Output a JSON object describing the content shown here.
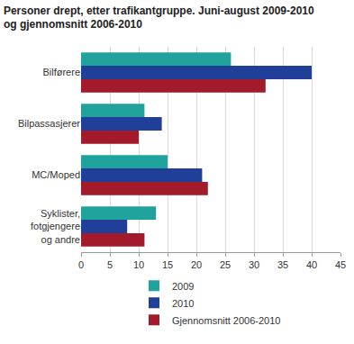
{
  "chart_data": {
    "type": "bar",
    "orientation": "horizontal",
    "title": "Personer drept, etter trafikantgruppe. Juni-august 2009-2010 og gjennomsnitt 2006-2010",
    "categories": [
      "Bilførere",
      "Bilpassasjerer",
      "MC/Moped",
      "Syklister, fotgjengere og andre"
    ],
    "series": [
      {
        "name": "2009",
        "color": "#1fa39c",
        "values": [
          26,
          11,
          15,
          13
        ]
      },
      {
        "name": "2010",
        "color": "#1f3f99",
        "values": [
          40,
          14,
          21,
          8
        ]
      },
      {
        "name": "Gjennomsnitt 2006-2010",
        "color": "#a31a2a",
        "values": [
          32,
          10,
          22,
          11
        ]
      }
    ],
    "xlim": [
      0,
      45
    ],
    "xticks": [
      0,
      5,
      10,
      15,
      20,
      25,
      30,
      35,
      40,
      45
    ],
    "grid": true,
    "legend": "bottom"
  }
}
